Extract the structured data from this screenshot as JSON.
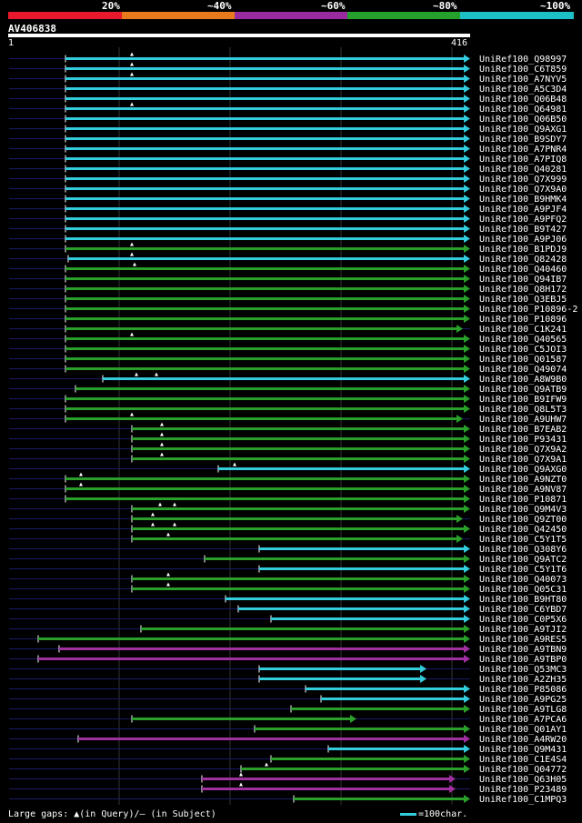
{
  "legend": {
    "labels": [
      "20%",
      "~40%",
      "~60%",
      "~80%",
      "~100%"
    ],
    "colors": [
      "#e8192c",
      "#e87a1e",
      "#9a2aa0",
      "#25a02a",
      "#1ec0c8"
    ]
  },
  "query": {
    "id": "AV406838",
    "start": "1",
    "end": "416"
  },
  "footer": {
    "text": "Large gaps: ▲(in Query)/– (in Subject)",
    "scale": "=100char."
  },
  "colors": {
    "cyan": "#33ccdd",
    "green": "#2aa02a",
    "purple": "#a030a0",
    "navy": "#1a1a66",
    "grid": "#333"
  },
  "hits": [
    {
      "id": "UniRef100_Q98997",
      "color": "cyan",
      "s": 72,
      "e": 510,
      "m": [
        145
      ]
    },
    {
      "id": "UniRef100_C6T859",
      "color": "cyan",
      "s": 72,
      "e": 510,
      "m": [
        145
      ]
    },
    {
      "id": "UniRef100_A7NYV5",
      "color": "cyan",
      "s": 72,
      "e": 510,
      "m": [
        145
      ]
    },
    {
      "id": "UniRef100_A5C3D4",
      "color": "cyan",
      "s": 72,
      "e": 510,
      "m": []
    },
    {
      "id": "UniRef100_Q06B48",
      "color": "cyan",
      "s": 72,
      "e": 510,
      "m": []
    },
    {
      "id": "UniRef100_Q64981",
      "color": "cyan",
      "s": 72,
      "e": 510,
      "m": [
        145
      ]
    },
    {
      "id": "UniRef100_Q06B50",
      "color": "cyan",
      "s": 72,
      "e": 510,
      "m": []
    },
    {
      "id": "UniRef100_Q9AXG1",
      "color": "cyan",
      "s": 72,
      "e": 510,
      "m": []
    },
    {
      "id": "UniRef100_B9SDY7",
      "color": "cyan",
      "s": 72,
      "e": 510,
      "m": []
    },
    {
      "id": "UniRef100_A7PNR4",
      "color": "cyan",
      "s": 72,
      "e": 510,
      "m": []
    },
    {
      "id": "UniRef100_A7PIQ8",
      "color": "cyan",
      "s": 72,
      "e": 510,
      "m": []
    },
    {
      "id": "UniRef100_Q40281",
      "color": "cyan",
      "s": 72,
      "e": 510,
      "m": []
    },
    {
      "id": "UniRef100_Q7X999",
      "color": "cyan",
      "s": 72,
      "e": 510,
      "m": []
    },
    {
      "id": "UniRef100_Q7X9A0",
      "color": "cyan",
      "s": 72,
      "e": 510,
      "m": []
    },
    {
      "id": "UniRef100_B9HMK4",
      "color": "cyan",
      "s": 72,
      "e": 510,
      "m": []
    },
    {
      "id": "UniRef100_A9PJF4",
      "color": "cyan",
      "s": 72,
      "e": 510,
      "m": []
    },
    {
      "id": "UniRef100_A9PFQ2",
      "color": "cyan",
      "s": 72,
      "e": 510,
      "m": []
    },
    {
      "id": "UniRef100_B9T427",
      "color": "cyan",
      "s": 72,
      "e": 510,
      "m": []
    },
    {
      "id": "UniRef100_A9PJ06",
      "color": "cyan",
      "s": 72,
      "e": 510,
      "m": []
    },
    {
      "id": "UniRef100_B1PDJ9",
      "color": "green",
      "s": 72,
      "e": 510,
      "m": [
        145
      ]
    },
    {
      "id": "UniRef100_Q82428",
      "color": "cyan",
      "s": 75,
      "e": 510,
      "m": [
        145
      ]
    },
    {
      "id": "UniRef100_Q40460",
      "color": "green",
      "s": 72,
      "e": 510,
      "m": [
        148
      ]
    },
    {
      "id": "UniRef100_Q94IB7",
      "color": "green",
      "s": 72,
      "e": 510,
      "m": []
    },
    {
      "id": "UniRef100_Q8H172",
      "color": "green",
      "s": 72,
      "e": 510,
      "m": []
    },
    {
      "id": "UniRef100_Q3EBJ5",
      "color": "green",
      "s": 72,
      "e": 510,
      "m": []
    },
    {
      "id": "UniRef100_P10896-2",
      "color": "green",
      "s": 72,
      "e": 510,
      "m": []
    },
    {
      "id": "UniRef100_P10896",
      "color": "green",
      "s": 72,
      "e": 510,
      "m": []
    },
    {
      "id": "UniRef100_C1K241",
      "color": "green",
      "s": 72,
      "e": 502,
      "m": []
    },
    {
      "id": "UniRef100_Q40565",
      "color": "green",
      "s": 72,
      "e": 510,
      "m": [
        145
      ]
    },
    {
      "id": "UniRef100_C5JOI3",
      "color": "green",
      "s": 72,
      "e": 510,
      "m": []
    },
    {
      "id": "UniRef100_Q01587",
      "color": "green",
      "s": 72,
      "e": 510,
      "m": []
    },
    {
      "id": "UniRef100_Q49074",
      "color": "green",
      "s": 72,
      "e": 510,
      "m": []
    },
    {
      "id": "UniRef100_A8W9B0",
      "color": "cyan",
      "s": 113,
      "e": 510,
      "m": [
        150,
        172
      ]
    },
    {
      "id": "UniRef100_Q9ATB9",
      "color": "green",
      "s": 83,
      "e": 510,
      "m": []
    },
    {
      "id": "UniRef100_B9IFW9",
      "color": "green",
      "s": 72,
      "e": 510,
      "m": []
    },
    {
      "id": "UniRef100_Q8L5T3",
      "color": "green",
      "s": 72,
      "e": 510,
      "m": []
    },
    {
      "id": "UniRef100_A9UHW7",
      "color": "green",
      "s": 72,
      "e": 502,
      "m": [
        145
      ]
    },
    {
      "id": "UniRef100_B7EAB2",
      "color": "green",
      "s": 145,
      "e": 510,
      "m": [
        178
      ]
    },
    {
      "id": "UniRef100_P93431",
      "color": "green",
      "s": 145,
      "e": 510,
      "m": [
        178
      ]
    },
    {
      "id": "UniRef100_Q7X9A2",
      "color": "green",
      "s": 145,
      "e": 510,
      "m": [
        178
      ]
    },
    {
      "id": "UniRef100_Q7X9A1",
      "color": "green",
      "s": 145,
      "e": 510,
      "m": [
        178
      ]
    },
    {
      "id": "UniRef100_Q9AXG0",
      "color": "cyan",
      "s": 240,
      "e": 510,
      "m": [
        258
      ]
    },
    {
      "id": "UniRef100_A9NZT0",
      "color": "green",
      "s": 72,
      "e": 510,
      "m": [
        89
      ]
    },
    {
      "id": "UniRef100_A9NV87",
      "color": "green",
      "s": 72,
      "e": 510,
      "m": [
        89
      ]
    },
    {
      "id": "UniRef100_P10871",
      "color": "green",
      "s": 72,
      "e": 510,
      "m": []
    },
    {
      "id": "UniRef100_Q9M4V3",
      "color": "green",
      "s": 145,
      "e": 510,
      "m": [
        176,
        192
      ]
    },
    {
      "id": "UniRef100_Q9ZT00",
      "color": "green",
      "s": 145,
      "e": 502,
      "m": [
        168
      ]
    },
    {
      "id": "UniRef100_Q42450",
      "color": "green",
      "s": 145,
      "e": 510,
      "m": [
        168,
        192
      ]
    },
    {
      "id": "UniRef100_C5Y1T5",
      "color": "green",
      "s": 145,
      "e": 502,
      "m": [
        185
      ]
    },
    {
      "id": "UniRef100_Q308Y6",
      "color": "cyan",
      "s": 285,
      "e": 510,
      "m": []
    },
    {
      "id": "UniRef100_Q9ATC2",
      "color": "green",
      "s": 225,
      "e": 510,
      "m": []
    },
    {
      "id": "UniRef100_C5Y1T6",
      "color": "cyan",
      "s": 285,
      "e": 510,
      "m": []
    },
    {
      "id": "UniRef100_Q40073",
      "color": "green",
      "s": 145,
      "e": 510,
      "m": [
        185
      ]
    },
    {
      "id": "UniRef100_Q05C31",
      "color": "green",
      "s": 145,
      "e": 510,
      "m": [
        185
      ]
    },
    {
      "id": "UniRef100_B9HT80",
      "color": "cyan",
      "s": 248,
      "e": 510,
      "m": []
    },
    {
      "id": "UniRef100_C6YBD7",
      "color": "cyan",
      "s": 262,
      "e": 510,
      "m": []
    },
    {
      "id": "UniRef100_C0P5X6",
      "color": "cyan",
      "s": 298,
      "e": 510,
      "m": []
    },
    {
      "id": "UniRef100_A9TJI2",
      "color": "green",
      "s": 155,
      "e": 510,
      "m": []
    },
    {
      "id": "UniRef100_A9RES5",
      "color": "green",
      "s": 42,
      "e": 510,
      "m": []
    },
    {
      "id": "UniRef100_A9TBN9",
      "color": "purple",
      "s": 65,
      "e": 510,
      "m": []
    },
    {
      "id": "UniRef100_A9TBP0",
      "color": "purple",
      "s": 42,
      "e": 510,
      "m": []
    },
    {
      "id": "UniRef100_Q53MC3",
      "color": "cyan",
      "s": 285,
      "e": 462,
      "m": []
    },
    {
      "id": "UniRef100_A2ZH35",
      "color": "cyan",
      "s": 285,
      "e": 462,
      "m": []
    },
    {
      "id": "UniRef100_P85086",
      "color": "cyan",
      "s": 336,
      "e": 510,
      "m": []
    },
    {
      "id": "UniRef100_A9PG25",
      "color": "cyan",
      "s": 353,
      "e": 510,
      "m": []
    },
    {
      "id": "UniRef100_A9TLG8",
      "color": "green",
      "s": 320,
      "e": 510,
      "m": []
    },
    {
      "id": "UniRef100_A7PCA6",
      "color": "green",
      "s": 145,
      "e": 385,
      "m": []
    },
    {
      "id": "UniRef100_Q01AY1",
      "color": "green",
      "s": 280,
      "e": 510,
      "m": []
    },
    {
      "id": "UniRef100_A4RW20",
      "color": "purple",
      "s": 86,
      "e": 510,
      "m": []
    },
    {
      "id": "UniRef100_Q9M431",
      "color": "cyan",
      "s": 361,
      "e": 510,
      "m": []
    },
    {
      "id": "UniRef100_C1E4S4",
      "color": "green",
      "s": 298,
      "e": 510,
      "m": []
    },
    {
      "id": "UniRef100_Q04772",
      "color": "green",
      "s": 265,
      "e": 510,
      "m": [
        293
      ]
    },
    {
      "id": "UniRef100_Q63H05",
      "color": "purple",
      "s": 222,
      "e": 494,
      "m": [
        265
      ]
    },
    {
      "id": "UniRef100_P23489",
      "color": "purple",
      "s": 222,
      "e": 494,
      "m": [
        265
      ]
    },
    {
      "id": "UniRef100_C1MPQ3",
      "color": "green",
      "s": 323,
      "e": 510,
      "m": []
    }
  ]
}
